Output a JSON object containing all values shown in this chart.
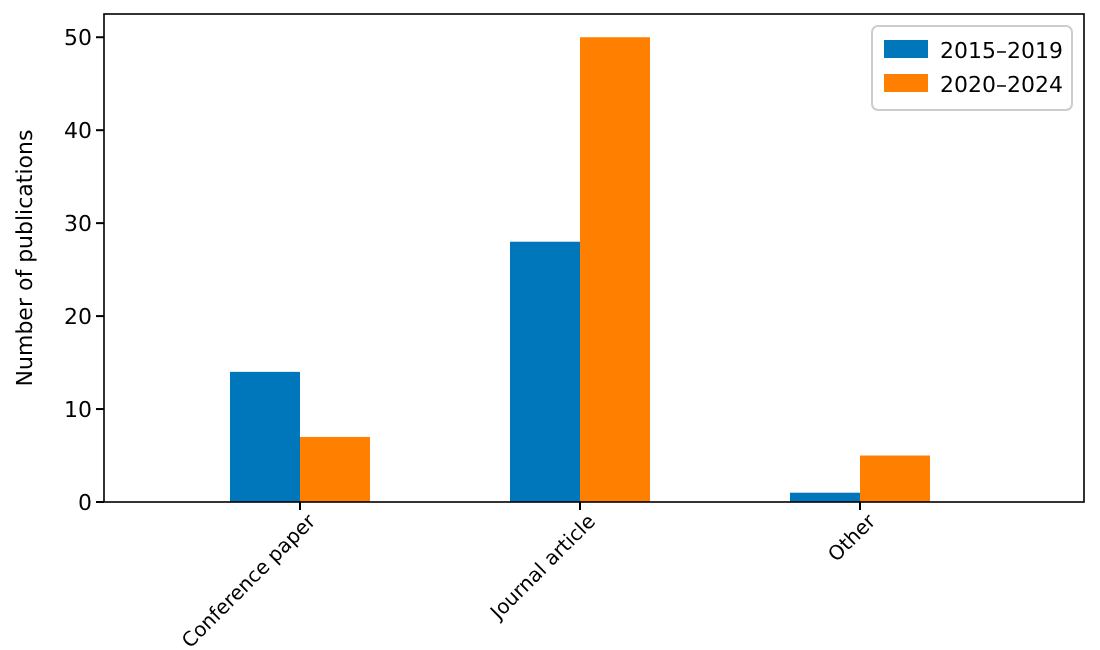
{
  "chart_data": {
    "type": "bar",
    "ylabel": "Number of publications",
    "categories": [
      "Conference paper",
      "Journal article",
      "Other"
    ],
    "series": [
      {
        "name": "2015–2019",
        "color": "#0077bb",
        "values": [
          14,
          28,
          1
        ]
      },
      {
        "name": "2020–2024",
        "color": "#ff8000",
        "values": [
          7,
          50,
          5
        ]
      }
    ],
    "ylim": [
      0,
      52.5
    ],
    "yticks": [
      0,
      10,
      20,
      30,
      40,
      50
    ],
    "grid": false,
    "legend": "top right"
  }
}
